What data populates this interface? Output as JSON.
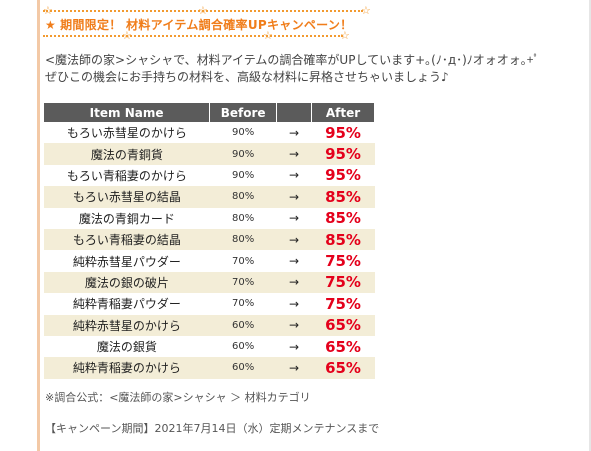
{
  "banner": {
    "title": "期間限定！ 材料アイテム調合確率UPキャンペーン！",
    "lead_star": "★",
    "star_glyph": "☆"
  },
  "intro": {
    "line1": "<魔法師の家>シャシャで、材料アイテムの調合確率がUPしています+｡(ﾉ･д･)ﾉオォオォ｡+ﾟ",
    "line2": "ぜひこの機会にお手持ちの材料を、高級な材料に昇格させちゃいましょう♪"
  },
  "table": {
    "headers": {
      "name": "Item Name",
      "before": "Before",
      "after": "After"
    },
    "arrow": "→",
    "rows": [
      {
        "name": "もろい赤彗星のかけら",
        "before": "90%",
        "after": "95%"
      },
      {
        "name": "魔法の青銅貨",
        "before": "90%",
        "after": "95%"
      },
      {
        "name": "もろい青稲妻のかけら",
        "before": "90%",
        "after": "95%"
      },
      {
        "name": "もろい赤彗星の結晶",
        "before": "80%",
        "after": "85%"
      },
      {
        "name": "魔法の青銅カード",
        "before": "80%",
        "after": "85%"
      },
      {
        "name": "もろい青稲妻の結晶",
        "before": "80%",
        "after": "85%"
      },
      {
        "name": "純粋赤彗星パウダー",
        "before": "70%",
        "after": "75%"
      },
      {
        "name": "魔法の銀の破片",
        "before": "70%",
        "after": "75%"
      },
      {
        "name": "純粋青稲妻パウダー",
        "before": "70%",
        "after": "75%"
      },
      {
        "name": "純粋赤彗星のかけら",
        "before": "60%",
        "after": "65%"
      },
      {
        "name": "魔法の銀貨",
        "before": "60%",
        "after": "65%"
      },
      {
        "name": "純粋青稲妻のかけら",
        "before": "60%",
        "after": "65%"
      }
    ]
  },
  "formula": "※調合公式：<魔法師の家>シャシャ ＞ 材料カテゴリ",
  "period": "【キャンペーン期間】2021年7月14日（水）定期メンテナンスまで",
  "colors": {
    "accent_orange": "#f07d1a",
    "header_bg": "#5b5b5b",
    "row_alt_bg": "#f3edd7",
    "after_red": "#e4001b"
  }
}
